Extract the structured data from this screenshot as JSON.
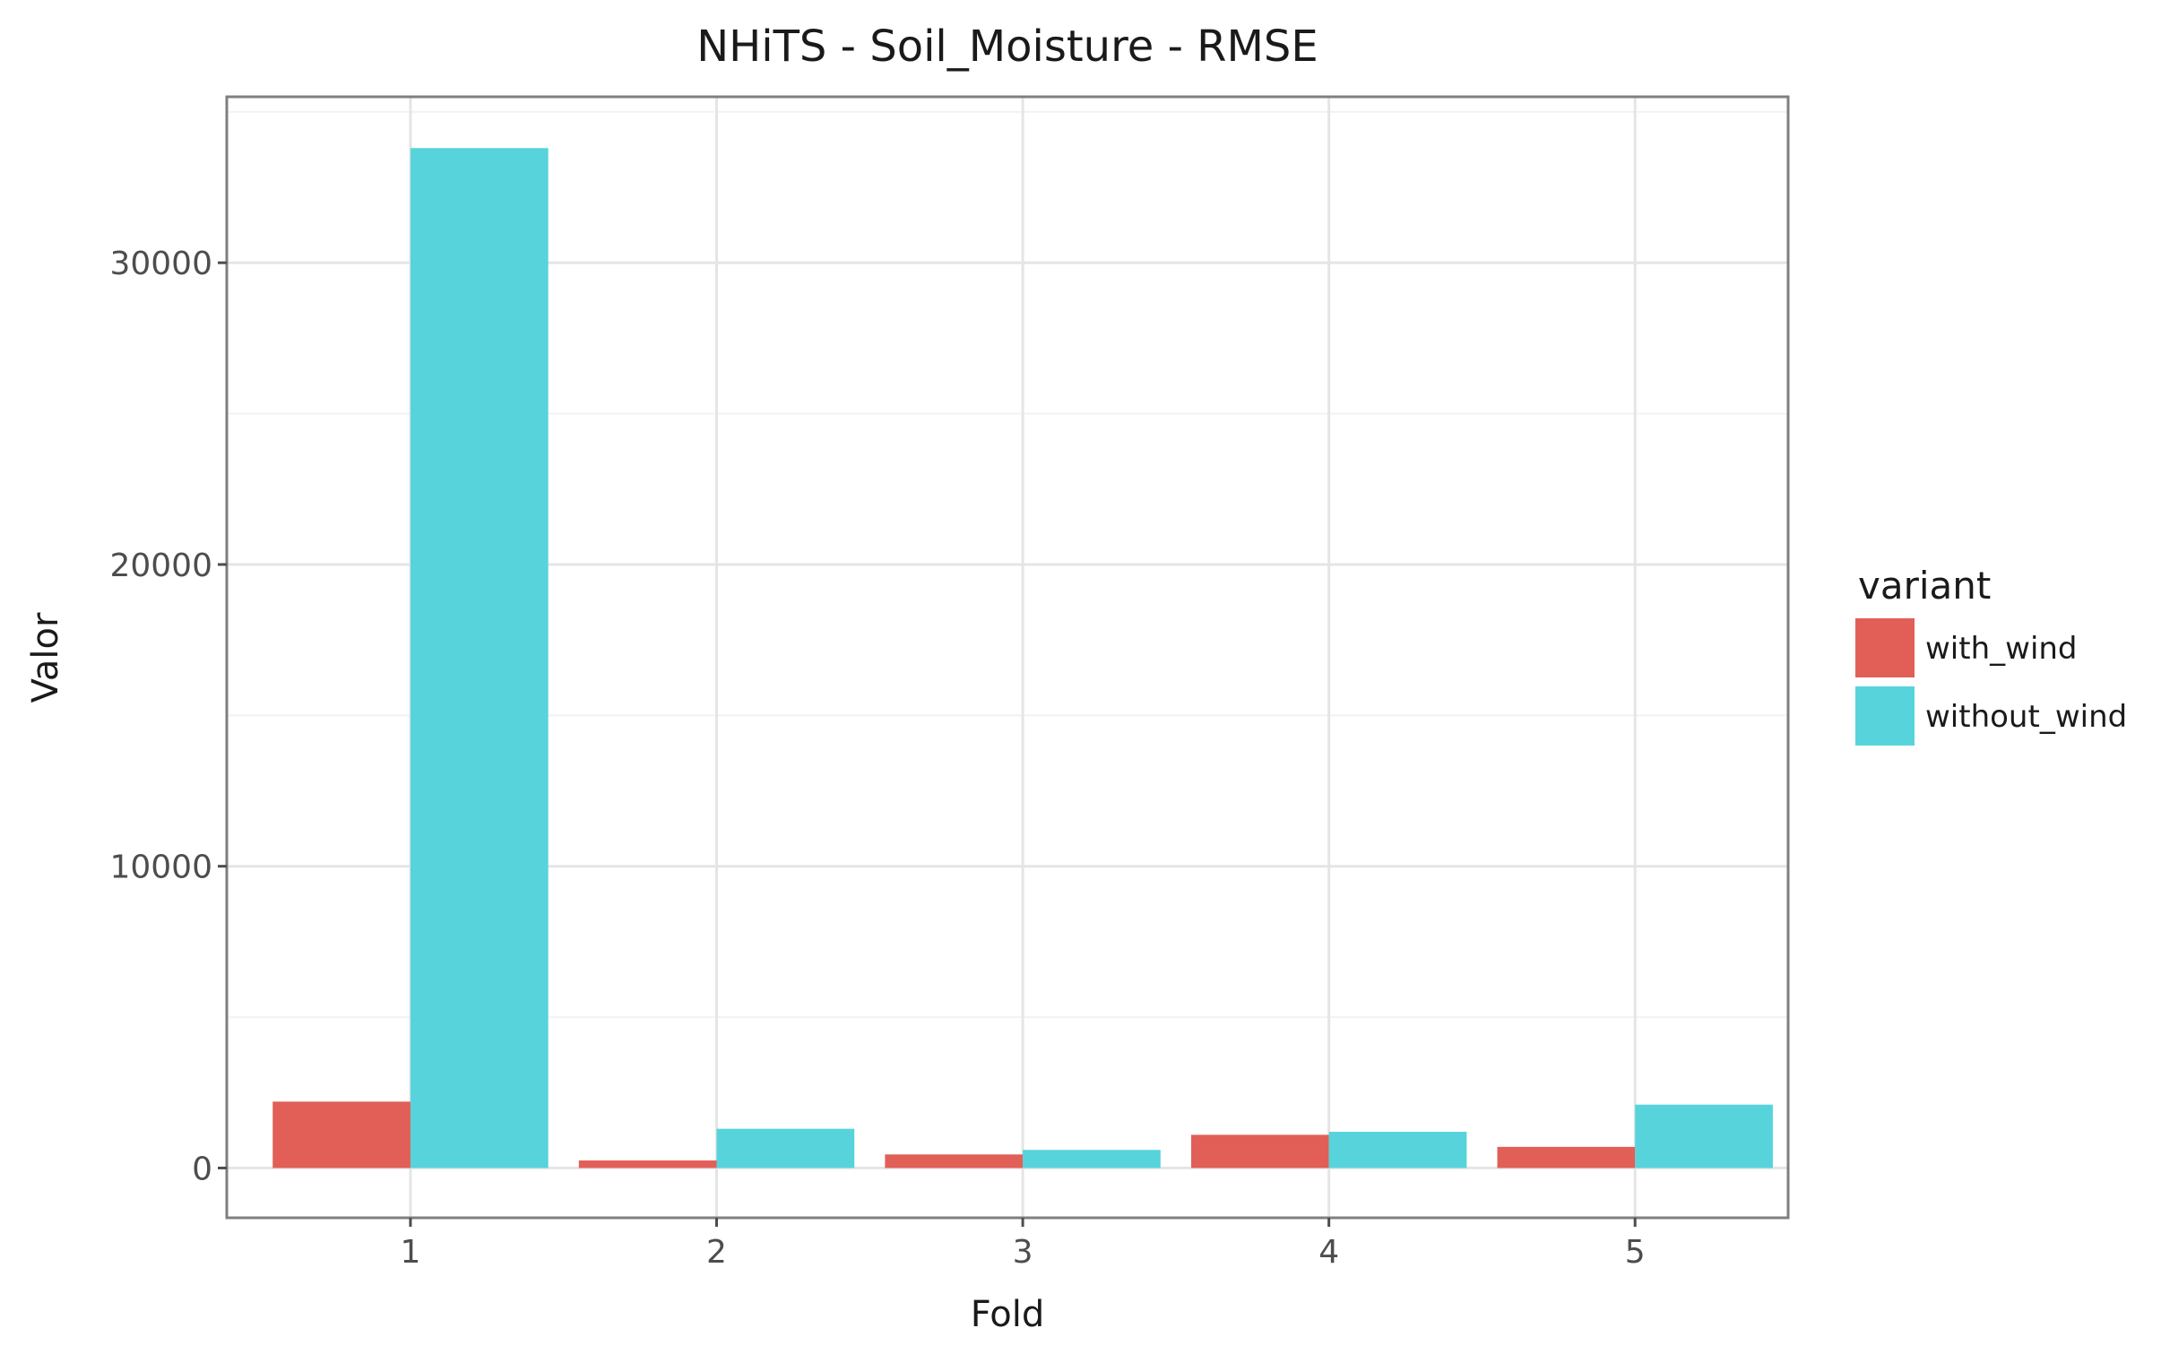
{
  "chart_data": {
    "type": "bar",
    "title": "NHiTS - Soil_Moisture - RMSE",
    "xlabel": "Fold",
    "ylabel": "Valor",
    "categories": [
      "1",
      "2",
      "3",
      "4",
      "5"
    ],
    "series": [
      {
        "name": "with_wind",
        "color": "#e15f57",
        "values": [
          2200,
          250,
          450,
          1100,
          700
        ]
      },
      {
        "name": "without_wind",
        "color": "#57d3db",
        "values": [
          33800,
          1300,
          600,
          1200,
          2100
        ]
      }
    ],
    "yticks": [
      0,
      10000,
      20000,
      30000
    ],
    "ytick_labels": [
      "0",
      "10000",
      "20000",
      "30000"
    ],
    "ylim": [
      -1650,
      35500
    ],
    "grid": true,
    "legend": {
      "title": "variant",
      "position": "right"
    }
  }
}
